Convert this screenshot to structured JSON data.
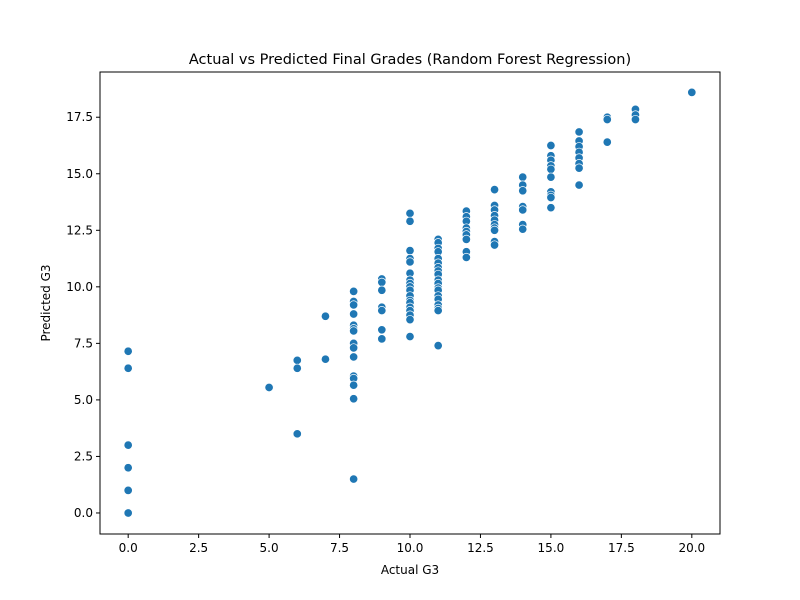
{
  "chart_data": {
    "type": "scatter",
    "title": "Actual vs Predicted Final Grades (Random Forest Regression)",
    "xlabel": "Actual G3",
    "ylabel": "Predicted G3",
    "xlim": [
      -1,
      21
    ],
    "ylim": [
      -0.93,
      19.5
    ],
    "xticks": [
      0,
      2.5,
      5,
      7.5,
      10,
      12.5,
      15,
      17.5,
      20
    ],
    "xtick_labels": [
      "0.0",
      "2.5",
      "5.0",
      "7.5",
      "10.0",
      "12.5",
      "15.0",
      "17.5",
      "20.0"
    ],
    "yticks": [
      0,
      2.5,
      5,
      7.5,
      10,
      12.5,
      15,
      17.5
    ],
    "ytick_labels": [
      "0.0",
      "2.5",
      "5.0",
      "7.5",
      "10.0",
      "12.5",
      "15.0",
      "17.5"
    ],
    "grid": false,
    "point_color": "#1f77b4",
    "points": [
      [
        0,
        7.15
      ],
      [
        0,
        6.4
      ],
      [
        0,
        3.0
      ],
      [
        0,
        2.0
      ],
      [
        0,
        1.0
      ],
      [
        0,
        0.0
      ],
      [
        5,
        5.55
      ],
      [
        6,
        6.75
      ],
      [
        6,
        6.4
      ],
      [
        6,
        3.5
      ],
      [
        7,
        8.7
      ],
      [
        7,
        6.8
      ],
      [
        8,
        9.8
      ],
      [
        8,
        9.35
      ],
      [
        8,
        9.2
      ],
      [
        8,
        8.8
      ],
      [
        8,
        8.3
      ],
      [
        8,
        8.15
      ],
      [
        8,
        8.05
      ],
      [
        8,
        7.5
      ],
      [
        8,
        7.3
      ],
      [
        8,
        6.9
      ],
      [
        8,
        6.05
      ],
      [
        8,
        5.95
      ],
      [
        8,
        5.65
      ],
      [
        8,
        5.05
      ],
      [
        8,
        1.5
      ],
      [
        9,
        10.35
      ],
      [
        9,
        10.2
      ],
      [
        9,
        9.85
      ],
      [
        9,
        9.1
      ],
      [
        9,
        8.95
      ],
      [
        9,
        8.1
      ],
      [
        9,
        7.7
      ],
      [
        10,
        13.25
      ],
      [
        10,
        12.9
      ],
      [
        10,
        11.6
      ],
      [
        10,
        11.25
      ],
      [
        10,
        11.1
      ],
      [
        10,
        10.6
      ],
      [
        10,
        10.3
      ],
      [
        10,
        10.15
      ],
      [
        10,
        10.0
      ],
      [
        10,
        9.85
      ],
      [
        10,
        9.6
      ],
      [
        10,
        9.4
      ],
      [
        10,
        9.3
      ],
      [
        10,
        9.1
      ],
      [
        10,
        8.95
      ],
      [
        10,
        8.75
      ],
      [
        10,
        8.55
      ],
      [
        10,
        7.8
      ],
      [
        11,
        12.1
      ],
      [
        11,
        11.95
      ],
      [
        11,
        11.7
      ],
      [
        11,
        11.55
      ],
      [
        11,
        11.25
      ],
      [
        11,
        11.05
      ],
      [
        11,
        10.85
      ],
      [
        11,
        10.7
      ],
      [
        11,
        10.55
      ],
      [
        11,
        10.3
      ],
      [
        11,
        10.15
      ],
      [
        11,
        9.95
      ],
      [
        11,
        9.85
      ],
      [
        11,
        9.6
      ],
      [
        11,
        9.45
      ],
      [
        11,
        9.2
      ],
      [
        11,
        9.05
      ],
      [
        11,
        8.95
      ],
      [
        11,
        7.4
      ],
      [
        12,
        13.35
      ],
      [
        12,
        13.1
      ],
      [
        12,
        12.9
      ],
      [
        12,
        12.6
      ],
      [
        12,
        12.45
      ],
      [
        12,
        12.3
      ],
      [
        12,
        12.1
      ],
      [
        12,
        11.55
      ],
      [
        12,
        11.3
      ],
      [
        13,
        14.3
      ],
      [
        13,
        13.6
      ],
      [
        13,
        13.4
      ],
      [
        13,
        13.15
      ],
      [
        13,
        12.95
      ],
      [
        13,
        12.75
      ],
      [
        13,
        12.6
      ],
      [
        13,
        12.5
      ],
      [
        13,
        12.0
      ],
      [
        13,
        11.85
      ],
      [
        14,
        14.85
      ],
      [
        14,
        14.5
      ],
      [
        14,
        14.25
      ],
      [
        14,
        13.55
      ],
      [
        14,
        13.4
      ],
      [
        14,
        12.75
      ],
      [
        14,
        12.55
      ],
      [
        15,
        16.25
      ],
      [
        15,
        15.8
      ],
      [
        15,
        15.6
      ],
      [
        15,
        15.35
      ],
      [
        15,
        15.2
      ],
      [
        15,
        14.85
      ],
      [
        15,
        14.2
      ],
      [
        15,
        14.05
      ],
      [
        15,
        13.95
      ],
      [
        15,
        13.5
      ],
      [
        16,
        16.85
      ],
      [
        16,
        16.45
      ],
      [
        16,
        16.2
      ],
      [
        16,
        15.95
      ],
      [
        16,
        15.7
      ],
      [
        16,
        15.45
      ],
      [
        16,
        15.25
      ],
      [
        16,
        14.5
      ],
      [
        17,
        17.5
      ],
      [
        17,
        17.4
      ],
      [
        17,
        16.4
      ],
      [
        18,
        17.85
      ],
      [
        18,
        17.6
      ],
      [
        18,
        17.4
      ],
      [
        20,
        18.6
      ]
    ]
  }
}
